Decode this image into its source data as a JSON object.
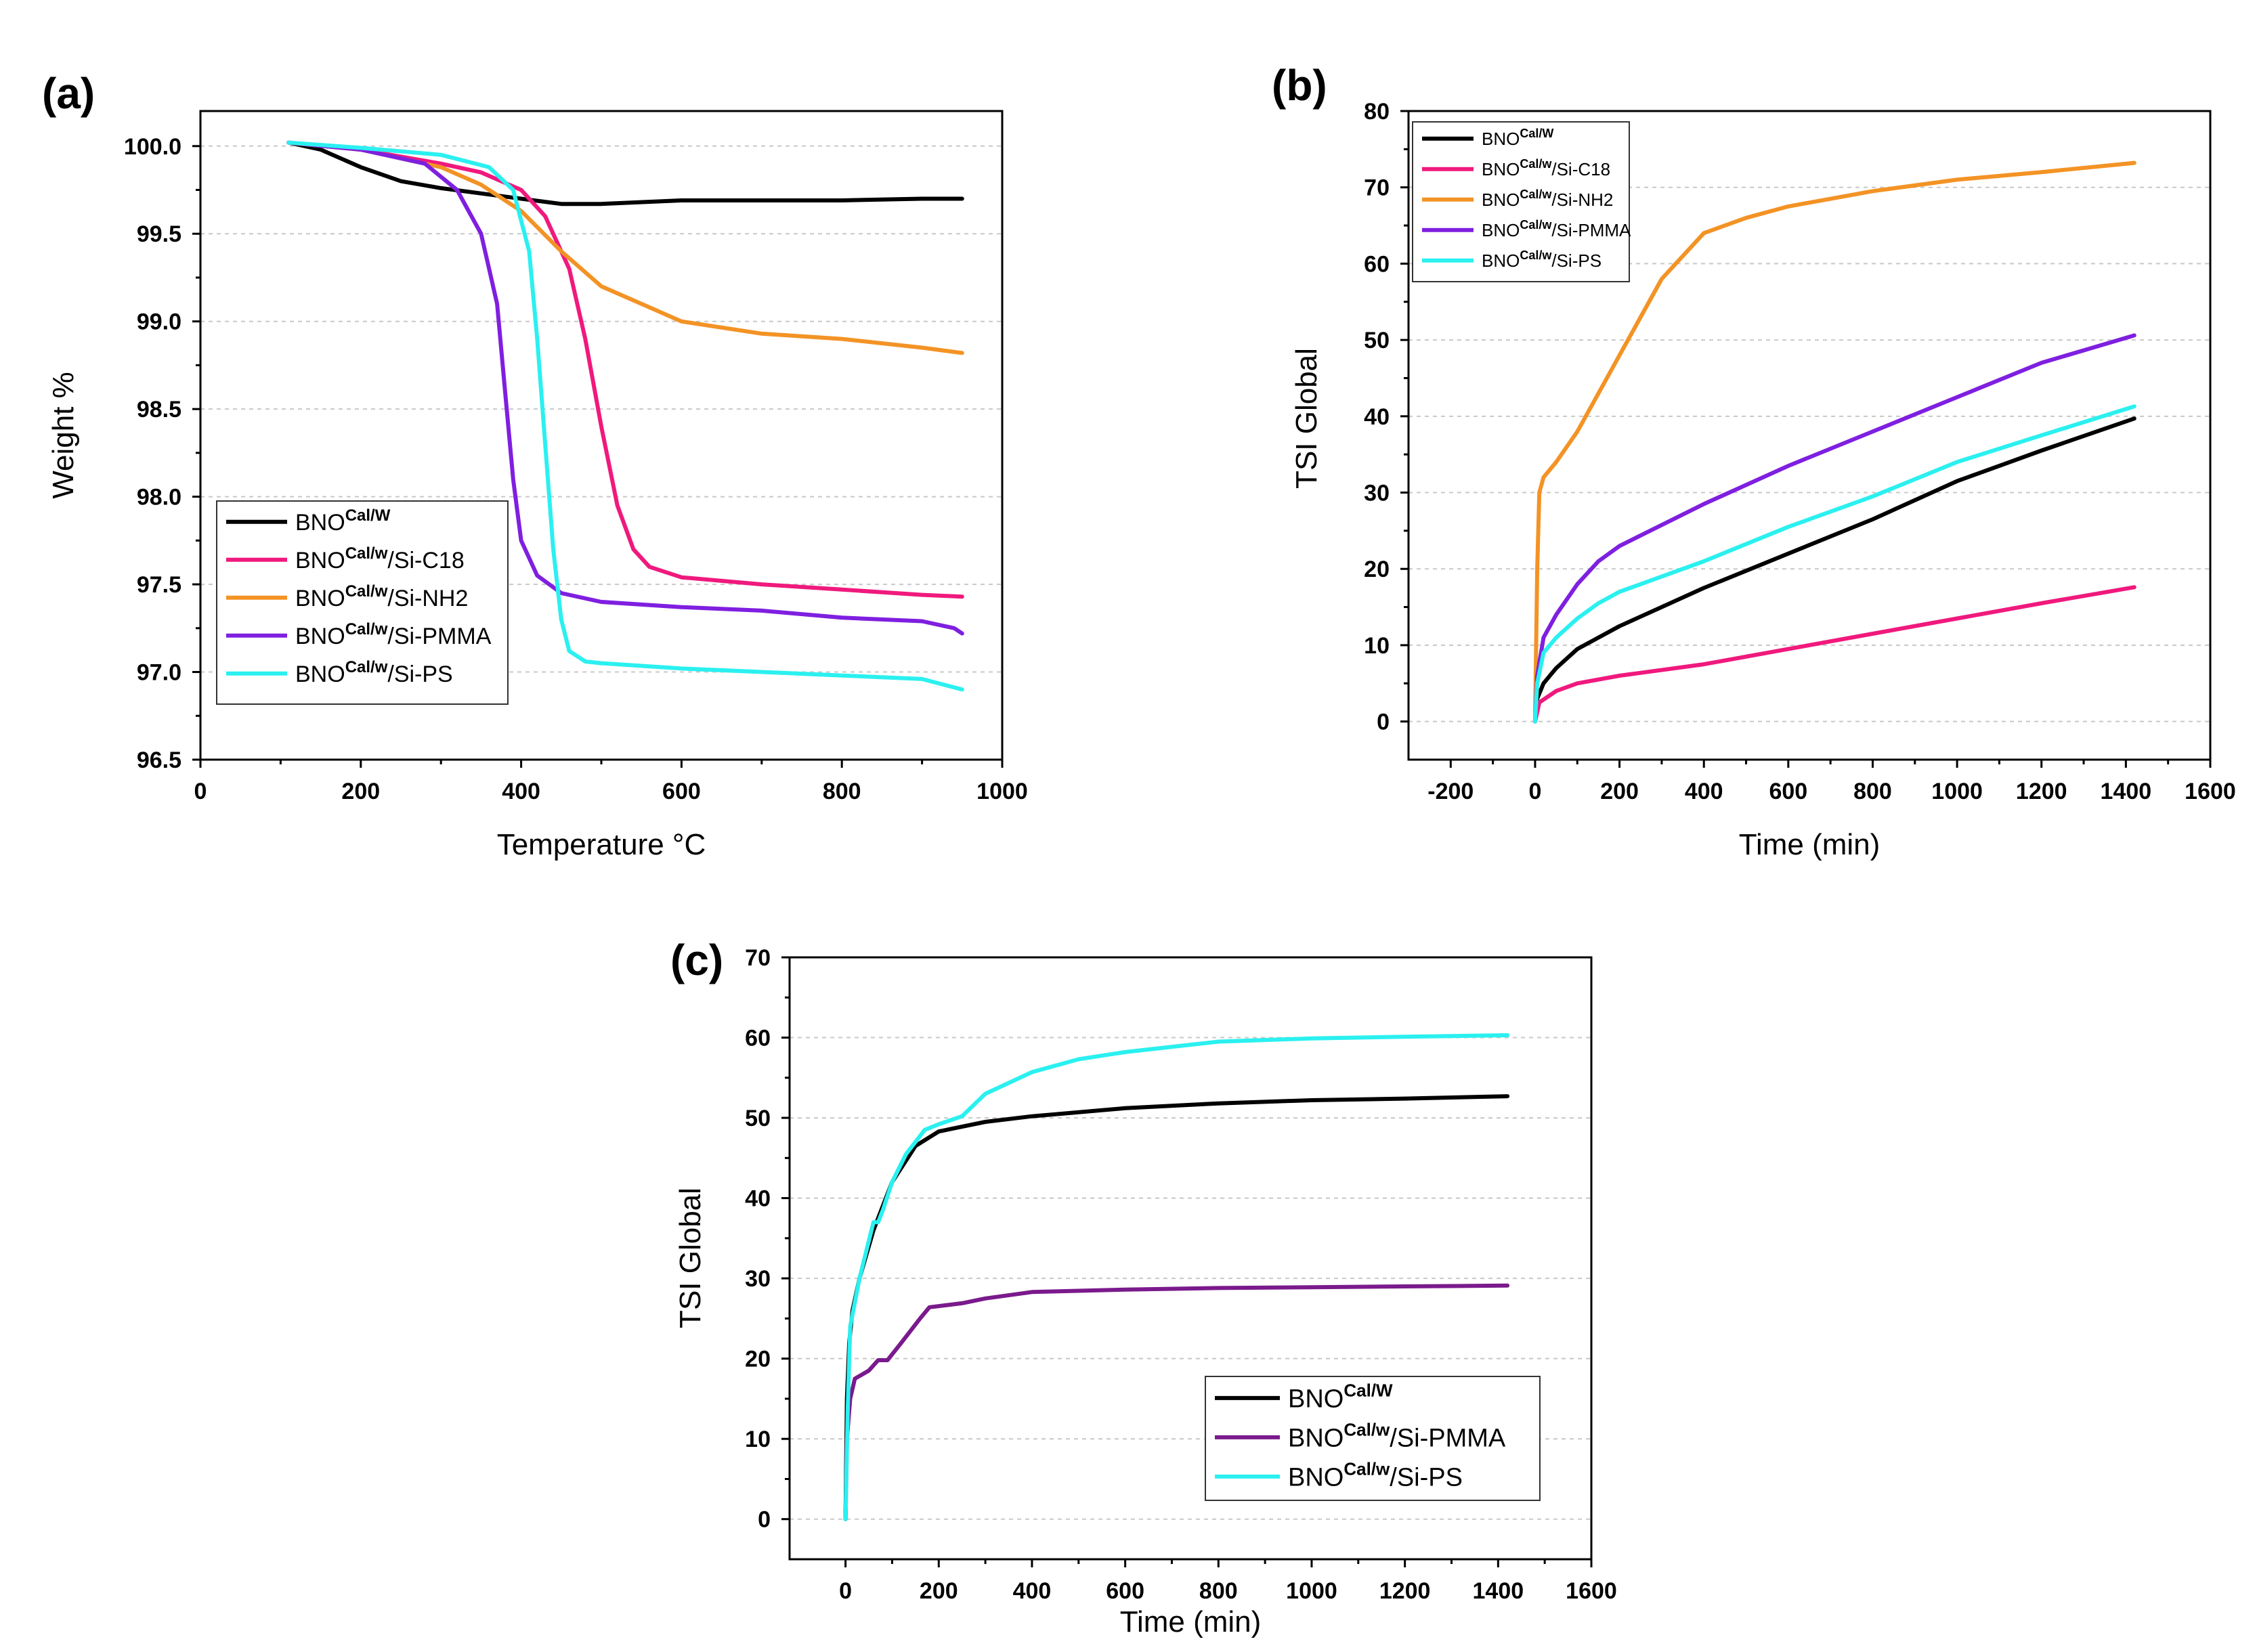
{
  "chart_data": [
    {
      "panel_label": "(a)",
      "type": "line",
      "xlabel": "Temperature °C",
      "ylabel": "Weight %",
      "xlim": [
        0,
        1000
      ],
      "ylim": [
        96.5,
        100.2
      ],
      "xticks": [
        "0",
        "200",
        "400",
        "600",
        "800",
        "1000"
      ],
      "yticks": [
        "96.5",
        "97.0",
        "97.5",
        "98.0",
        "98.5",
        "99.0",
        "99.5",
        "100.0"
      ],
      "grid": "horizontal dashed",
      "legend_position": "lower-left",
      "series": [
        {
          "name": "BNO",
          "sup": "Cal/W",
          "suffix": "",
          "color": "#000000",
          "points": [
            [
              110,
              100.02
            ],
            [
              150,
              99.98
            ],
            [
              200,
              99.88
            ],
            [
              250,
              99.8
            ],
            [
              300,
              99.76
            ],
            [
              350,
              99.73
            ],
            [
              400,
              99.7
            ],
            [
              450,
              99.67
            ],
            [
              500,
              99.67
            ],
            [
              600,
              99.69
            ],
            [
              700,
              99.69
            ],
            [
              800,
              99.69
            ],
            [
              900,
              99.7
            ],
            [
              950,
              99.7
            ]
          ]
        },
        {
          "name": "BNO",
          "sup": "Cal/w",
          "suffix": "/Si-C18",
          "color": "#f0197d",
          "points": [
            [
              110,
              100.02
            ],
            [
              200,
              99.98
            ],
            [
              300,
              99.9
            ],
            [
              350,
              99.85
            ],
            [
              400,
              99.75
            ],
            [
              430,
              99.6
            ],
            [
              460,
              99.3
            ],
            [
              480,
              98.9
            ],
            [
              500,
              98.4
            ],
            [
              520,
              97.95
            ],
            [
              540,
              97.7
            ],
            [
              560,
              97.6
            ],
            [
              600,
              97.54
            ],
            [
              700,
              97.5
            ],
            [
              800,
              97.47
            ],
            [
              900,
              97.44
            ],
            [
              950,
              97.43
            ]
          ]
        },
        {
          "name": "BNO",
          "sup": "Cal/w",
          "suffix": "/Si-NH2",
          "color": "#f39325",
          "points": [
            [
              110,
              100.02
            ],
            [
              200,
              99.98
            ],
            [
              300,
              99.88
            ],
            [
              350,
              99.78
            ],
            [
              400,
              99.63
            ],
            [
              450,
              99.4
            ],
            [
              500,
              99.2
            ],
            [
              550,
              99.1
            ],
            [
              600,
              99.0
            ],
            [
              700,
              98.93
            ],
            [
              800,
              98.9
            ],
            [
              900,
              98.85
            ],
            [
              950,
              98.82
            ]
          ]
        },
        {
          "name": "BNO",
          "sup": "Cal/w",
          "suffix": "/Si-PMMA",
          "color": "#7f1fe0",
          "points": [
            [
              110,
              100.02
            ],
            [
              200,
              99.98
            ],
            [
              280,
              99.9
            ],
            [
              320,
              99.75
            ],
            [
              350,
              99.5
            ],
            [
              370,
              99.1
            ],
            [
              380,
              98.6
            ],
            [
              390,
              98.1
            ],
            [
              400,
              97.75
            ],
            [
              420,
              97.55
            ],
            [
              450,
              97.45
            ],
            [
              500,
              97.4
            ],
            [
              600,
              97.37
            ],
            [
              700,
              97.35
            ],
            [
              800,
              97.31
            ],
            [
              900,
              97.29
            ],
            [
              940,
              97.25
            ],
            [
              950,
              97.22
            ]
          ]
        },
        {
          "name": "BNO",
          "sup": "Cal/w",
          "suffix": "/Si-PS",
          "color": "#2bf0f0",
          "points": [
            [
              110,
              100.02
            ],
            [
              200,
              99.99
            ],
            [
              300,
              99.95
            ],
            [
              360,
              99.88
            ],
            [
              390,
              99.75
            ],
            [
              410,
              99.4
            ],
            [
              420,
              98.9
            ],
            [
              430,
              98.3
            ],
            [
              440,
              97.7
            ],
            [
              450,
              97.3
            ],
            [
              460,
              97.12
            ],
            [
              480,
              97.06
            ],
            [
              500,
              97.05
            ],
            [
              600,
              97.02
            ],
            [
              700,
              97.0
            ],
            [
              800,
              96.98
            ],
            [
              900,
              96.96
            ],
            [
              950,
              96.9
            ]
          ]
        }
      ]
    },
    {
      "panel_label": "(b)",
      "type": "line",
      "xlabel": "Time (min)",
      "ylabel": "TSI Global",
      "xlim": [
        -300,
        1600
      ],
      "ylim": [
        -5,
        80
      ],
      "xticks": [
        "-200",
        "0",
        "200",
        "400",
        "600",
        "800",
        "1000",
        "1200",
        "1400",
        "1600"
      ],
      "yticks": [
        "0",
        "10",
        "20",
        "30",
        "40",
        "50",
        "60",
        "70",
        "80"
      ],
      "grid": "horizontal dashed",
      "legend_position": "top-left",
      "series": [
        {
          "name": "BNO",
          "sup": "Cal/W",
          "suffix": "",
          "color": "#000000",
          "points": [
            [
              0,
              0
            ],
            [
              5,
              3
            ],
            [
              20,
              5
            ],
            [
              50,
              7
            ],
            [
              100,
              9.5
            ],
            [
              150,
              11
            ],
            [
              200,
              12.5
            ],
            [
              300,
              15
            ],
            [
              400,
              17.5
            ],
            [
              600,
              22
            ],
            [
              800,
              26.5
            ],
            [
              1000,
              31.5
            ],
            [
              1200,
              35.5
            ],
            [
              1420,
              39.7
            ]
          ]
        },
        {
          "name": "BNO",
          "sup": "Cal/w",
          "suffix": "/Si-C18",
          "color": "#f0197d",
          "points": [
            [
              0,
              0
            ],
            [
              10,
              2.5
            ],
            [
              50,
              4
            ],
            [
              100,
              5
            ],
            [
              200,
              6
            ],
            [
              400,
              7.5
            ],
            [
              600,
              9.5
            ],
            [
              800,
              11.5
            ],
            [
              1000,
              13.5
            ],
            [
              1200,
              15.5
            ],
            [
              1420,
              17.6
            ]
          ]
        },
        {
          "name": "BNO",
          "sup": "Cal/w",
          "suffix": "/Si-NH2",
          "color": "#f39325",
          "points": [
            [
              0,
              0
            ],
            [
              5,
              20
            ],
            [
              10,
              30
            ],
            [
              20,
              32
            ],
            [
              50,
              34
            ],
            [
              100,
              38
            ],
            [
              200,
              48
            ],
            [
              300,
              58
            ],
            [
              400,
              64
            ],
            [
              500,
              66
            ],
            [
              600,
              67.5
            ],
            [
              800,
              69.5
            ],
            [
              1000,
              71
            ],
            [
              1200,
              72
            ],
            [
              1420,
              73.2
            ]
          ]
        },
        {
          "name": "BNO",
          "sup": "Cal/w",
          "suffix": "/Si-PMMA",
          "color": "#7f1fe0",
          "points": [
            [
              0,
              0
            ],
            [
              5,
              6
            ],
            [
              20,
              11
            ],
            [
              50,
              14
            ],
            [
              100,
              18
            ],
            [
              150,
              21
            ],
            [
              200,
              23
            ],
            [
              400,
              28.5
            ],
            [
              600,
              33.5
            ],
            [
              800,
              38
            ],
            [
              1000,
              42.5
            ],
            [
              1200,
              47
            ],
            [
              1420,
              50.6
            ]
          ]
        },
        {
          "name": "BNO",
          "sup": "Cal/w",
          "suffix": "/Si-PS",
          "color": "#2bf0f0",
          "points": [
            [
              0,
              0
            ],
            [
              5,
              5
            ],
            [
              20,
              9
            ],
            [
              50,
              11
            ],
            [
              100,
              13.5
            ],
            [
              150,
              15.5
            ],
            [
              200,
              17
            ],
            [
              400,
              21
            ],
            [
              600,
              25.5
            ],
            [
              800,
              29.5
            ],
            [
              1000,
              34
            ],
            [
              1200,
              37.5
            ],
            [
              1420,
              41.3
            ]
          ]
        }
      ]
    },
    {
      "panel_label": "(c)",
      "type": "line",
      "xlabel": "Time (min)",
      "ylabel": "TSI Global",
      "xlim": [
        -120,
        1600
      ],
      "ylim": [
        -5,
        70
      ],
      "xticks": [
        "0",
        "200",
        "400",
        "600",
        "800",
        "1000",
        "1200",
        "1400",
        "1600"
      ],
      "yticks": [
        "0",
        "10",
        "20",
        "30",
        "40",
        "50",
        "60",
        "70"
      ],
      "grid": "horizontal dashed",
      "legend_position": "bottom-right",
      "series": [
        {
          "name": "BNO",
          "sup": "Cal/W",
          "suffix": "",
          "color": "#000000",
          "points": [
            [
              0,
              0
            ],
            [
              3,
              15
            ],
            [
              8,
              22
            ],
            [
              15,
              26
            ],
            [
              30,
              30
            ],
            [
              60,
              36
            ],
            [
              100,
              42
            ],
            [
              150,
              46.5
            ],
            [
              200,
              48.3
            ],
            [
              300,
              49.5
            ],
            [
              400,
              50.2
            ],
            [
              600,
              51.2
            ],
            [
              800,
              51.8
            ],
            [
              1000,
              52.2
            ],
            [
              1200,
              52.4
            ],
            [
              1420,
              52.7
            ]
          ]
        },
        {
          "name": "BNO",
          "sup": "Cal/w",
          "suffix": "/Si-PMMA",
          "color": "#7a1a8c",
          "points": [
            [
              0,
              0
            ],
            [
              3,
              10
            ],
            [
              10,
              15
            ],
            [
              20,
              17.5
            ],
            [
              50,
              18.5
            ],
            [
              70,
              19.8
            ],
            [
              90,
              19.8
            ],
            [
              120,
              22
            ],
            [
              160,
              25
            ],
            [
              180,
              26.4
            ],
            [
              250,
              26.9
            ],
            [
              300,
              27.5
            ],
            [
              400,
              28.3
            ],
            [
              600,
              28.6
            ],
            [
              800,
              28.8
            ],
            [
              1000,
              28.9
            ],
            [
              1200,
              29
            ],
            [
              1420,
              29.1
            ]
          ]
        },
        {
          "name": "BNO",
          "sup": "Cal/w",
          "suffix": "/Si-PS",
          "color": "#2bf0f0",
          "points": [
            [
              0,
              0
            ],
            [
              5,
              14
            ],
            [
              10,
              24
            ],
            [
              30,
              30
            ],
            [
              60,
              37
            ],
            [
              70,
              37
            ],
            [
              80,
              38.5
            ],
            [
              100,
              42
            ],
            [
              130,
              45.5
            ],
            [
              170,
              48.5
            ],
            [
              200,
              49.2
            ],
            [
              250,
              50.2
            ],
            [
              300,
              53
            ],
            [
              400,
              55.7
            ],
            [
              500,
              57.3
            ],
            [
              600,
              58.2
            ],
            [
              800,
              59.5
            ],
            [
              1000,
              59.9
            ],
            [
              1200,
              60.1
            ],
            [
              1420,
              60.3
            ]
          ]
        }
      ]
    }
  ]
}
